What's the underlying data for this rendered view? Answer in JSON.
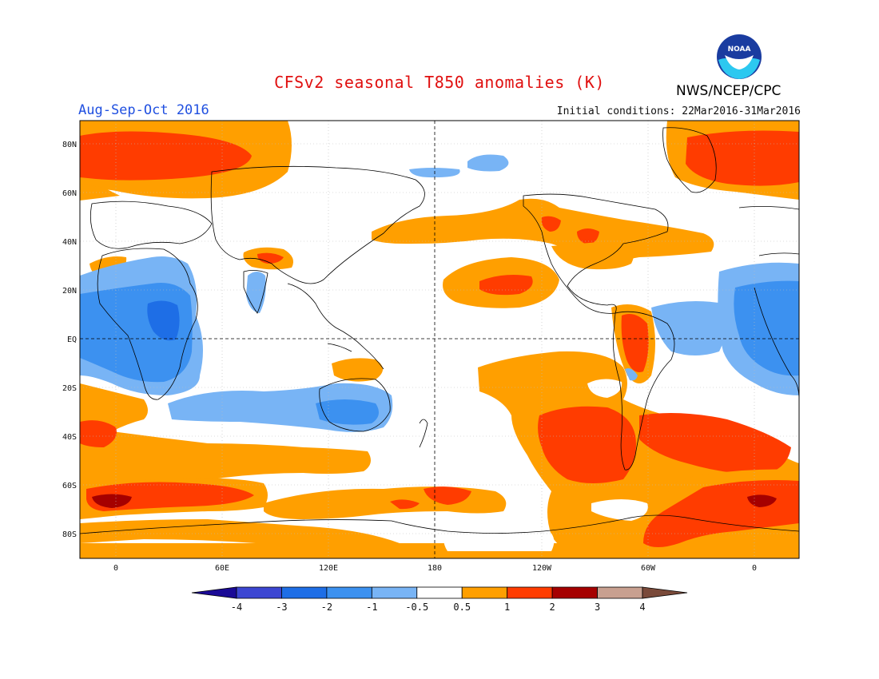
{
  "title": "CFSv2 seasonal T850 anomalies (K)",
  "period": "Aug-Sep-Oct 2016",
  "initial_conditions": "Initial conditions: 22Mar2016-31Mar2016",
  "agency": "NWS/NCEP/CPC",
  "logo_text": "NOAA",
  "lat_labels": [
    "80N",
    "60N",
    "40N",
    "20N",
    "EQ",
    "20S",
    "40S",
    "60S",
    "80S"
  ],
  "lon_labels": [
    "0",
    "60E",
    "120E",
    "180",
    "120W",
    "60W",
    "0"
  ],
  "colorbar": {
    "labels": [
      "-4",
      "-3",
      "-2",
      "-1",
      "-0.5",
      "0.5",
      "1",
      "2",
      "3",
      "4"
    ],
    "colors": [
      "#1a0a96",
      "#3c46d2",
      "#1e6ee6",
      "#3c91f0",
      "#78b4f5",
      "#ffffff",
      "#ff9f00",
      "#ff3c00",
      "#a50000",
      "#c8a090",
      "#7a4a3a"
    ]
  },
  "colors": {
    "cool1": "#78b4f5",
    "cool2": "#3c91f0",
    "cool3": "#1e6ee6",
    "warm1": "#ff9f00",
    "warm2": "#ff3c00",
    "warm3": "#a50000",
    "title": "#e01010",
    "period": "#2050e0"
  }
}
